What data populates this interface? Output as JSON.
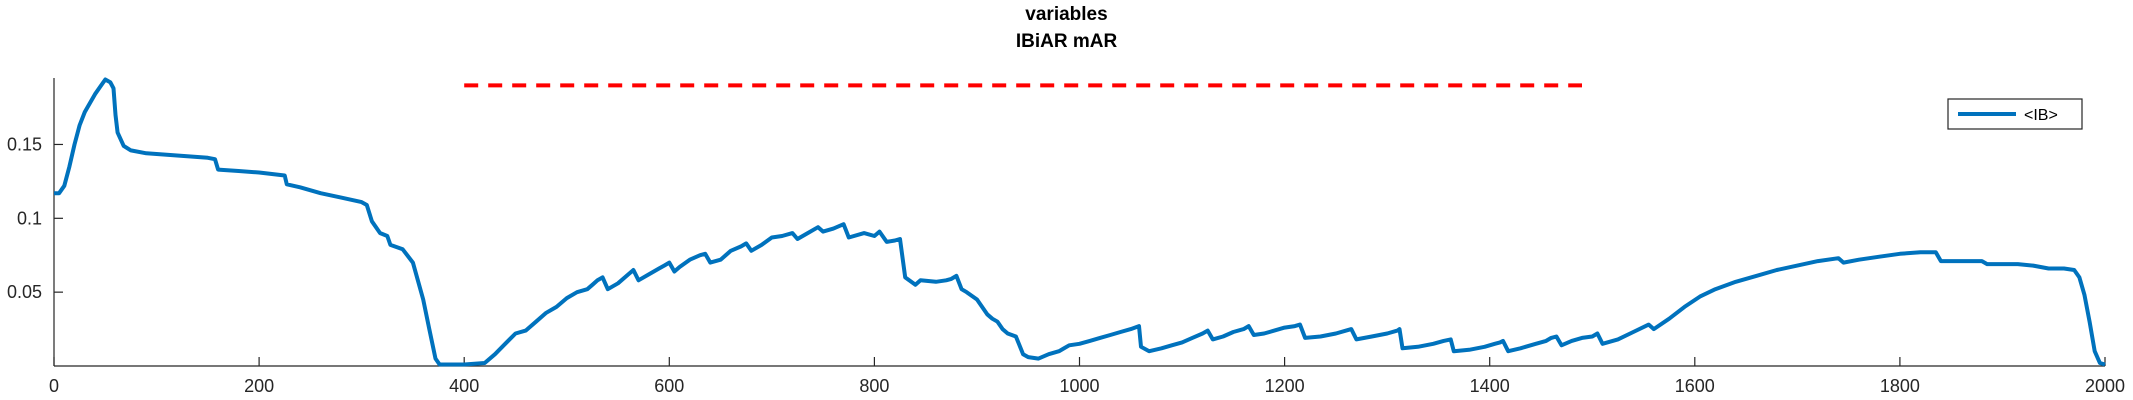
{
  "chart_data": {
    "type": "line",
    "title": "variables",
    "subtitle": "IBiAR mAR",
    "xlabel": "",
    "ylabel": "",
    "xlim": [
      0,
      2000
    ],
    "ylim": [
      0,
      0.195
    ],
    "xticks": [
      0,
      200,
      400,
      600,
      800,
      1000,
      1200,
      1400,
      1600,
      1800,
      2000
    ],
    "xtick_labels": [
      "0",
      "200",
      "400",
      "600",
      "800",
      "1000",
      "1200",
      "1400",
      "1600",
      "1800",
      "2000"
    ],
    "yticks": [
      0.05,
      0.1,
      0.15
    ],
    "ytick_labels": [
      "0.05",
      "0.1",
      "0.15"
    ],
    "grid": false,
    "legend_position": "top-right",
    "series": [
      {
        "name": "<IB>",
        "color": "#0072BD",
        "points": [
          [
            0,
            0.117
          ],
          [
            5,
            0.117
          ],
          [
            10,
            0.122
          ],
          [
            15,
            0.135
          ],
          [
            20,
            0.15
          ],
          [
            25,
            0.163
          ],
          [
            30,
            0.172
          ],
          [
            35,
            0.178
          ],
          [
            40,
            0.184
          ],
          [
            45,
            0.189
          ],
          [
            50,
            0.194
          ],
          [
            55,
            0.192
          ],
          [
            58,
            0.188
          ],
          [
            60,
            0.17
          ],
          [
            62,
            0.158
          ],
          [
            68,
            0.149
          ],
          [
            75,
            0.146
          ],
          [
            90,
            0.144
          ],
          [
            110,
            0.143
          ],
          [
            130,
            0.142
          ],
          [
            150,
            0.141
          ],
          [
            157,
            0.14
          ],
          [
            160,
            0.133
          ],
          [
            180,
            0.132
          ],
          [
            200,
            0.131
          ],
          [
            225,
            0.129
          ],
          [
            227,
            0.123
          ],
          [
            240,
            0.121
          ],
          [
            260,
            0.117
          ],
          [
            280,
            0.114
          ],
          [
            300,
            0.111
          ],
          [
            305,
            0.109
          ],
          [
            310,
            0.098
          ],
          [
            318,
            0.09
          ],
          [
            325,
            0.088
          ],
          [
            328,
            0.082
          ],
          [
            340,
            0.079
          ],
          [
            350,
            0.07
          ],
          [
            360,
            0.045
          ],
          [
            366,
            0.025
          ],
          [
            372,
            0.005
          ],
          [
            376,
            0.001
          ],
          [
            400,
            0.001
          ],
          [
            420,
            0.002
          ],
          [
            430,
            0.008
          ],
          [
            440,
            0.015
          ],
          [
            450,
            0.022
          ],
          [
            460,
            0.024
          ],
          [
            470,
            0.03
          ],
          [
            480,
            0.036
          ],
          [
            490,
            0.04
          ],
          [
            500,
            0.046
          ],
          [
            510,
            0.05
          ],
          [
            520,
            0.052
          ],
          [
            525,
            0.055
          ],
          [
            530,
            0.058
          ],
          [
            535,
            0.06
          ],
          [
            540,
            0.052
          ],
          [
            550,
            0.056
          ],
          [
            560,
            0.062
          ],
          [
            565,
            0.065
          ],
          [
            570,
            0.058
          ],
          [
            580,
            0.062
          ],
          [
            590,
            0.066
          ],
          [
            595,
            0.068
          ],
          [
            600,
            0.07
          ],
          [
            605,
            0.064
          ],
          [
            610,
            0.067
          ],
          [
            620,
            0.072
          ],
          [
            630,
            0.075
          ],
          [
            635,
            0.076
          ],
          [
            640,
            0.07
          ],
          [
            650,
            0.072
          ],
          [
            660,
            0.078
          ],
          [
            670,
            0.081
          ],
          [
            675,
            0.083
          ],
          [
            680,
            0.078
          ],
          [
            690,
            0.082
          ],
          [
            700,
            0.087
          ],
          [
            710,
            0.088
          ],
          [
            720,
            0.09
          ],
          [
            725,
            0.086
          ],
          [
            735,
            0.09
          ],
          [
            745,
            0.094
          ],
          [
            750,
            0.091
          ],
          [
            760,
            0.093
          ],
          [
            770,
            0.096
          ],
          [
            775,
            0.087
          ],
          [
            790,
            0.09
          ],
          [
            800,
            0.088
          ],
          [
            805,
            0.091
          ],
          [
            812,
            0.084
          ],
          [
            820,
            0.085
          ],
          [
            825,
            0.086
          ],
          [
            830,
            0.06
          ],
          [
            840,
            0.055
          ],
          [
            845,
            0.058
          ],
          [
            860,
            0.057
          ],
          [
            870,
            0.058
          ],
          [
            875,
            0.059
          ],
          [
            880,
            0.061
          ],
          [
            885,
            0.052
          ],
          [
            890,
            0.05
          ],
          [
            900,
            0.045
          ],
          [
            905,
            0.04
          ],
          [
            910,
            0.035
          ],
          [
            915,
            0.032
          ],
          [
            920,
            0.03
          ],
          [
            925,
            0.025
          ],
          [
            930,
            0.022
          ],
          [
            938,
            0.02
          ],
          [
            945,
            0.008
          ],
          [
            950,
            0.006
          ],
          [
            960,
            0.005
          ],
          [
            970,
            0.008
          ],
          [
            980,
            0.01
          ],
          [
            985,
            0.012
          ],
          [
            990,
            0.014
          ],
          [
            1000,
            0.015
          ],
          [
            1010,
            0.017
          ],
          [
            1020,
            0.019
          ],
          [
            1030,
            0.021
          ],
          [
            1040,
            0.023
          ],
          [
            1050,
            0.025
          ],
          [
            1058,
            0.027
          ],
          [
            1060,
            0.013
          ],
          [
            1068,
            0.01
          ],
          [
            1080,
            0.012
          ],
          [
            1090,
            0.014
          ],
          [
            1100,
            0.016
          ],
          [
            1110,
            0.019
          ],
          [
            1120,
            0.022
          ],
          [
            1125,
            0.024
          ],
          [
            1130,
            0.018
          ],
          [
            1140,
            0.02
          ],
          [
            1150,
            0.023
          ],
          [
            1160,
            0.025
          ],
          [
            1165,
            0.027
          ],
          [
            1170,
            0.021
          ],
          [
            1180,
            0.022
          ],
          [
            1190,
            0.024
          ],
          [
            1200,
            0.026
          ],
          [
            1210,
            0.027
          ],
          [
            1215,
            0.028
          ],
          [
            1220,
            0.019
          ],
          [
            1235,
            0.02
          ],
          [
            1250,
            0.022
          ],
          [
            1260,
            0.024
          ],
          [
            1265,
            0.025
          ],
          [
            1270,
            0.018
          ],
          [
            1285,
            0.02
          ],
          [
            1300,
            0.022
          ],
          [
            1310,
            0.024
          ],
          [
            1312,
            0.025
          ],
          [
            1315,
            0.012
          ],
          [
            1330,
            0.013
          ],
          [
            1345,
            0.015
          ],
          [
            1355,
            0.017
          ],
          [
            1362,
            0.018
          ],
          [
            1365,
            0.01
          ],
          [
            1380,
            0.011
          ],
          [
            1395,
            0.013
          ],
          [
            1405,
            0.015
          ],
          [
            1410,
            0.016
          ],
          [
            1413,
            0.017
          ],
          [
            1418,
            0.01
          ],
          [
            1430,
            0.012
          ],
          [
            1445,
            0.015
          ],
          [
            1455,
            0.017
          ],
          [
            1460,
            0.019
          ],
          [
            1465,
            0.02
          ],
          [
            1470,
            0.014
          ],
          [
            1480,
            0.017
          ],
          [
            1490,
            0.019
          ],
          [
            1500,
            0.02
          ],
          [
            1505,
            0.022
          ],
          [
            1510,
            0.015
          ],
          [
            1525,
            0.018
          ],
          [
            1540,
            0.023
          ],
          [
            1555,
            0.028
          ],
          [
            1560,
            0.025
          ],
          [
            1575,
            0.032
          ],
          [
            1590,
            0.04
          ],
          [
            1605,
            0.047
          ],
          [
            1620,
            0.052
          ],
          [
            1640,
            0.057
          ],
          [
            1660,
            0.061
          ],
          [
            1680,
            0.065
          ],
          [
            1700,
            0.068
          ],
          [
            1720,
            0.071
          ],
          [
            1740,
            0.073
          ],
          [
            1745,
            0.07
          ],
          [
            1760,
            0.072
          ],
          [
            1780,
            0.074
          ],
          [
            1800,
            0.076
          ],
          [
            1820,
            0.077
          ],
          [
            1835,
            0.077
          ],
          [
            1840,
            0.071
          ],
          [
            1860,
            0.071
          ],
          [
            1880,
            0.071
          ],
          [
            1885,
            0.069
          ],
          [
            1900,
            0.069
          ],
          [
            1915,
            0.069
          ],
          [
            1930,
            0.068
          ],
          [
            1945,
            0.066
          ],
          [
            1960,
            0.066
          ],
          [
            1970,
            0.065
          ],
          [
            1975,
            0.06
          ],
          [
            1980,
            0.048
          ],
          [
            1985,
            0.03
          ],
          [
            1990,
            0.01
          ],
          [
            1995,
            0.002
          ],
          [
            2000,
            0.001
          ]
        ]
      },
      {
        "name": "",
        "color": "#FF0000",
        "style": "dashed",
        "points": [
          [
            400,
            0.19
          ],
          [
            1490,
            0.19
          ]
        ]
      }
    ]
  }
}
